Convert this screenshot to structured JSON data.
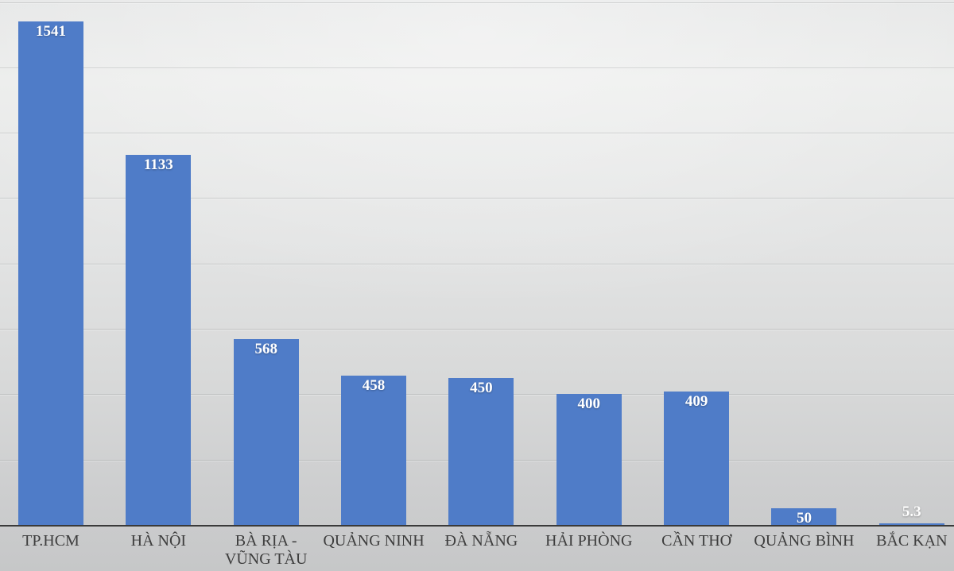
{
  "chart_data": {
    "type": "bar",
    "title": "",
    "xlabel": "",
    "ylabel": "",
    "categories": [
      "TP.HCM",
      "HÀ NỘI",
      "BÀ RỊA - VŨNG TÀU",
      "QUẢNG NINH",
      "ĐÀ NẴNG",
      "HẢI PHÒNG",
      "CẦN THƠ",
      "QUẢNG BÌNH",
      "BẮC KẠN"
    ],
    "values": [
      1541,
      1133,
      568,
      458,
      450,
      400,
      409,
      50,
      5.3
    ],
    "value_labels": [
      "1541",
      "1133",
      "568",
      "458",
      "450",
      "400",
      "409",
      "50",
      "5.3"
    ],
    "ylim": [
      0,
      1600
    ],
    "grid": true,
    "grid_interval": 200,
    "legend_position": "none",
    "colors": {
      "bar": "#4f7cc8",
      "value_label": "#ffffff",
      "axis_line": "#3a3a3a",
      "category_label": "#3d3d3d",
      "gridline": "rgba(125,128,128,0.28)"
    }
  }
}
